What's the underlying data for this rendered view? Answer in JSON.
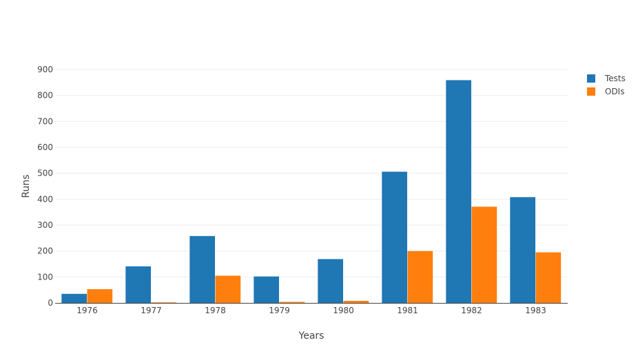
{
  "chart_data": {
    "type": "bar",
    "categories": [
      "1976",
      "1977",
      "1978",
      "1979",
      "1980",
      "1981",
      "1982",
      "1983"
    ],
    "series": [
      {
        "name": "Tests",
        "values": [
          35,
          141,
          258,
          102,
          169,
          506,
          859,
          408
        ],
        "color": "#1f77b4"
      },
      {
        "name": "ODIs",
        "values": [
          53,
          2,
          105,
          4,
          8,
          200,
          371,
          195
        ],
        "color": "#ff7f0e"
      }
    ],
    "xlabel": "Years",
    "ylabel": "Runs",
    "ylim": [
      0,
      900
    ],
    "yticks": [
      0,
      100,
      200,
      300,
      400,
      500,
      600,
      700,
      800,
      900
    ],
    "grid": true,
    "legend_position": "top-right"
  }
}
